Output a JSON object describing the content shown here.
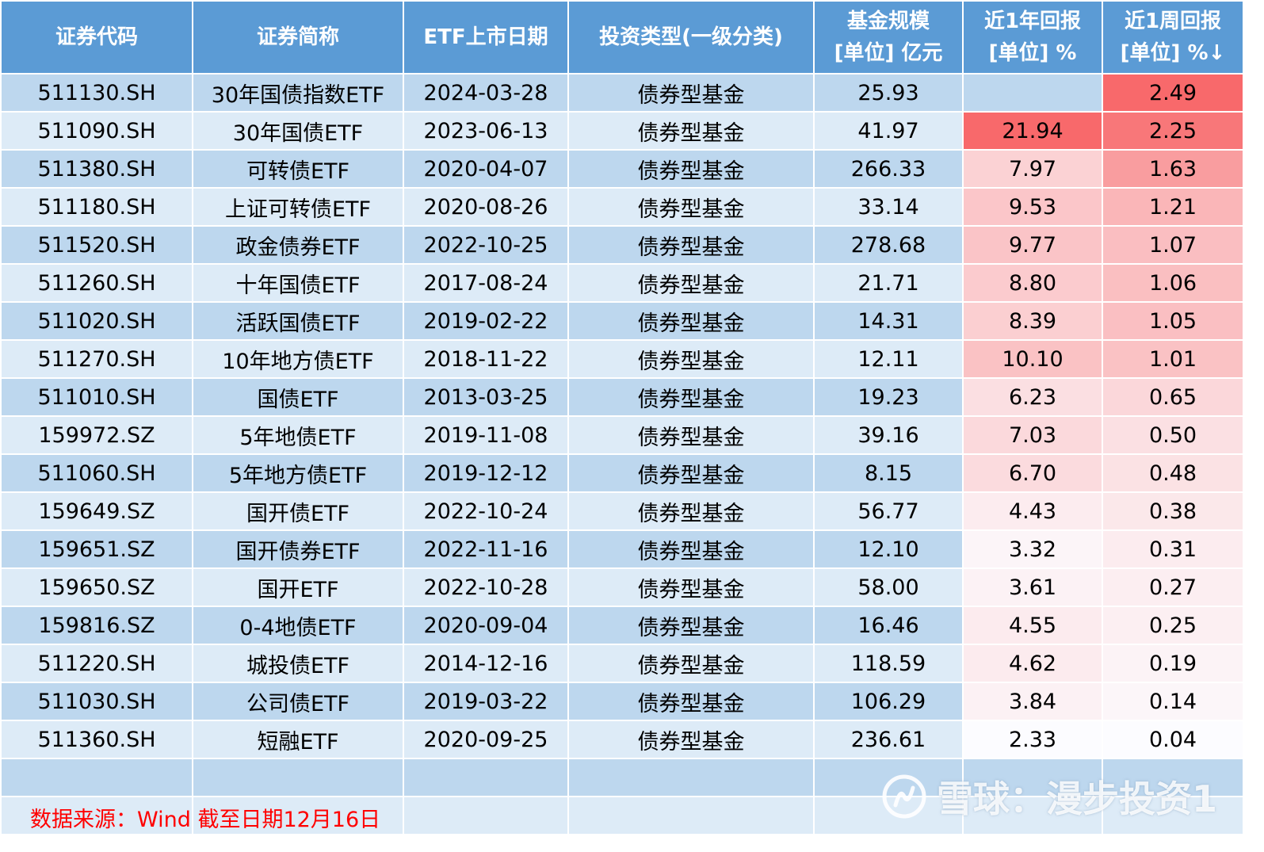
{
  "header": {
    "col_code": "证券代码",
    "col_name": "证券简称",
    "col_date": "ETF上市日期",
    "col_type": "投资类型(一级分类)",
    "col_scale_1": "基金规模",
    "col_scale_2": "[单位] 亿元",
    "col_ret1y_1": "近1年回报",
    "col_ret1y_2": "[单位] %",
    "col_ret1w_1": "近1周回报",
    "col_ret1w_2": "[单位] %↓"
  },
  "rows": [
    {
      "code": "511130.SH",
      "name": "30年国债指数ETF",
      "date": "2024-03-28",
      "type": "债券型基金",
      "scale": "25.93",
      "ret1y": "",
      "ret1w": "2.49"
    },
    {
      "code": "511090.SH",
      "name": "30年国债ETF",
      "date": "2023-06-13",
      "type": "债券型基金",
      "scale": "41.97",
      "ret1y": "21.94",
      "ret1w": "2.25"
    },
    {
      "code": "511380.SH",
      "name": "可转债ETF",
      "date": "2020-04-07",
      "type": "债券型基金",
      "scale": "266.33",
      "ret1y": "7.97",
      "ret1w": "1.63"
    },
    {
      "code": "511180.SH",
      "name": "上证可转债ETF",
      "date": "2020-08-26",
      "type": "债券型基金",
      "scale": "33.14",
      "ret1y": "9.53",
      "ret1w": "1.21"
    },
    {
      "code": "511520.SH",
      "name": "政金债券ETF",
      "date": "2022-10-25",
      "type": "债券型基金",
      "scale": "278.68",
      "ret1y": "9.77",
      "ret1w": "1.07"
    },
    {
      "code": "511260.SH",
      "name": "十年国债ETF",
      "date": "2017-08-24",
      "type": "债券型基金",
      "scale": "21.71",
      "ret1y": "8.80",
      "ret1w": "1.06"
    },
    {
      "code": "511020.SH",
      "name": "活跃国债ETF",
      "date": "2019-02-22",
      "type": "债券型基金",
      "scale": "14.31",
      "ret1y": "8.39",
      "ret1w": "1.05"
    },
    {
      "code": "511270.SH",
      "name": "10年地方债ETF",
      "date": "2018-11-22",
      "type": "债券型基金",
      "scale": "12.11",
      "ret1y": "10.10",
      "ret1w": "1.01"
    },
    {
      "code": "511010.SH",
      "name": "国债ETF",
      "date": "2013-03-25",
      "type": "债券型基金",
      "scale": "19.23",
      "ret1y": "6.23",
      "ret1w": "0.65"
    },
    {
      "code": "159972.SZ",
      "name": "5年地债ETF",
      "date": "2019-11-08",
      "type": "债券型基金",
      "scale": "39.16",
      "ret1y": "7.03",
      "ret1w": "0.50"
    },
    {
      "code": "511060.SH",
      "name": "5年地方债ETF",
      "date": "2019-12-12",
      "type": "债券型基金",
      "scale": "8.15",
      "ret1y": "6.70",
      "ret1w": "0.48"
    },
    {
      "code": "159649.SZ",
      "name": "国开债ETF",
      "date": "2022-10-24",
      "type": "债券型基金",
      "scale": "56.77",
      "ret1y": "4.43",
      "ret1w": "0.38"
    },
    {
      "code": "159651.SZ",
      "name": "国开债券ETF",
      "date": "2022-11-16",
      "type": "债券型基金",
      "scale": "12.10",
      "ret1y": "3.32",
      "ret1w": "0.31"
    },
    {
      "code": "159650.SZ",
      "name": "国开ETF",
      "date": "2022-10-28",
      "type": "债券型基金",
      "scale": "58.00",
      "ret1y": "3.61",
      "ret1w": "0.27"
    },
    {
      "code": "159816.SZ",
      "name": "0-4地债ETF",
      "date": "2020-09-04",
      "type": "债券型基金",
      "scale": "16.46",
      "ret1y": "4.55",
      "ret1w": "0.25"
    },
    {
      "code": "511220.SH",
      "name": "城投债ETF",
      "date": "2014-12-16",
      "type": "债券型基金",
      "scale": "118.59",
      "ret1y": "4.62",
      "ret1w": "0.19"
    },
    {
      "code": "511030.SH",
      "name": "公司债ETF",
      "date": "2019-03-22",
      "type": "债券型基金",
      "scale": "106.29",
      "ret1y": "3.84",
      "ret1w": "0.14"
    },
    {
      "code": "511360.SH",
      "name": "短融ETF",
      "date": "2020-09-25",
      "type": "债券型基金",
      "scale": "236.61",
      "ret1y": "2.33",
      "ret1w": "0.04"
    }
  ],
  "heatmap_colors": {
    "high": "#f8696b",
    "low": "#fcfcff"
  },
  "footer": {
    "source": "数据来源：Wind 截至日期12月16日"
  },
  "watermark": {
    "text": "雪球：漫步投资1",
    "logo_icon": "xueqiu-logo-icon"
  }
}
